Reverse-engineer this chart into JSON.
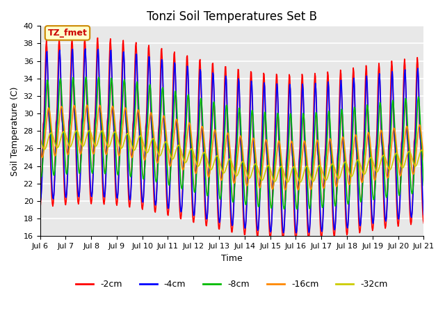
{
  "title": "Tonzi Soil Temperatures Set B",
  "xlabel": "Time",
  "ylabel": "Soil Temperature (C)",
  "ylim": [
    16,
    40
  ],
  "yticks": [
    16,
    18,
    20,
    22,
    24,
    26,
    28,
    30,
    32,
    34,
    36,
    38,
    40
  ],
  "xtick_labels": [
    "Jul 6",
    "Jul 7",
    "Jul 8",
    "Jul 9",
    "Jul 10",
    "Jul 11",
    "Jul 12",
    "Jul 13",
    "Jul 14",
    "Jul 15",
    "Jul 16",
    "Jul 17",
    "Jul 18",
    "Jul 19",
    "Jul 20",
    "Jul 21"
  ],
  "annotation_text": "TZ_fmet",
  "bg_color": "#e8e8e8",
  "grid_color": "#ffffff",
  "legend_entries": [
    "-2cm",
    "-4cm",
    "-8cm",
    "-16cm",
    "-32cm"
  ],
  "line_colors": [
    "#ff0000",
    "#0000ff",
    "#00bb00",
    "#ff8800",
    "#cccc00"
  ],
  "line_width": 1.2,
  "n_points": 720,
  "days": 15,
  "mean_base": 27.5,
  "A0_2": 9.5,
  "A0_4": 8.5,
  "A0_8": 5.5,
  "A0_16": 2.8,
  "A0_32": 0.9,
  "d_2": 1.5,
  "d_4": 2.5,
  "d_8": 5.0,
  "d_16": 12.0,
  "d_32": 30.0,
  "phi0": -1.5707963,
  "omega_per_day": 2.0,
  "mean_slope": -0.15,
  "mean_amp": 1.5,
  "mean_period": 14.0
}
